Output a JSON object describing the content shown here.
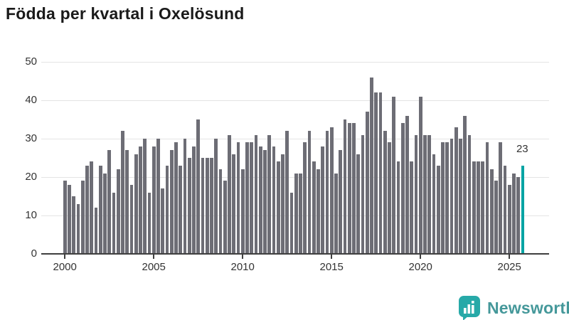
{
  "title": "Födda per kvartal i Oxelösund",
  "annotation": {
    "label": "23"
  },
  "branding": {
    "name": "Newsworthy",
    "icon": "newsworthy-logo-icon"
  },
  "colors": {
    "bar": "#6d6d75",
    "accent": "#00a4a4",
    "grid": "#e4e4e4",
    "axis": "#3f3f3f",
    "title": "#1a1a1a",
    "tick_label": "#333333",
    "annotation": "#333333",
    "logo_background": "#27a9a8",
    "logo_text": "#45989a"
  },
  "chart_data": {
    "type": "bar",
    "title": "Födda per kvartal i Oxelösund",
    "xlabel": "",
    "ylabel": "",
    "frequency": "quarterly",
    "start_year": 2000,
    "values": [
      19,
      18,
      15,
      13,
      19,
      23,
      24,
      12,
      23,
      21,
      27,
      16,
      22,
      32,
      27,
      18,
      26,
      28,
      30,
      16,
      28,
      30,
      17,
      23,
      27,
      29,
      23,
      30,
      25,
      28,
      35,
      25,
      25,
      25,
      30,
      22,
      19,
      31,
      26,
      29,
      22,
      29,
      29,
      31,
      28,
      27,
      31,
      28,
      24,
      26,
      32,
      16,
      21,
      21,
      29,
      32,
      24,
      22,
      28,
      32,
      33,
      21,
      27,
      35,
      34,
      34,
      26,
      31,
      37,
      46,
      42,
      42,
      32,
      29,
      41,
      24,
      34,
      36,
      24,
      31,
      41,
      31,
      31,
      26,
      23,
      29,
      29,
      30,
      33,
      30,
      36,
      31,
      24,
      24,
      24,
      29,
      22,
      19,
      29,
      23,
      18,
      21,
      20,
      23
    ],
    "highlight_index": 103,
    "highlight_value": 23,
    "yticks": [
      0,
      10,
      20,
      30,
      40,
      50
    ],
    "xticks": [
      2000,
      2005,
      2010,
      2015,
      2020,
      2025
    ],
    "ylim": [
      0,
      50
    ],
    "grid": "horizontal",
    "legend": "none"
  }
}
